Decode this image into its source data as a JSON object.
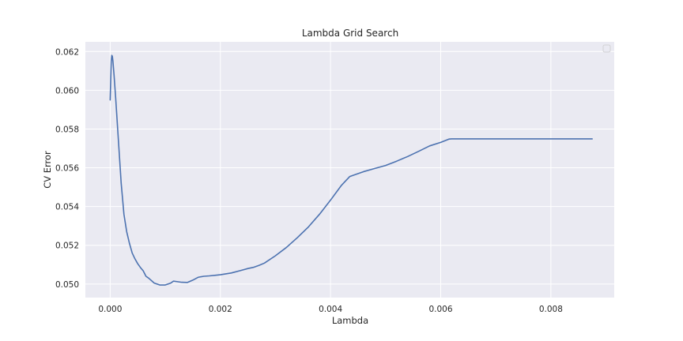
{
  "chart_data": {
    "type": "line",
    "title": "Lambda Grid Search",
    "xlabel": "Lambda",
    "ylabel": "CV Error",
    "xlim": [
      -0.00045,
      0.00915
    ],
    "ylim": [
      0.0493,
      0.0625
    ],
    "x_ticks": [
      0.0,
      0.002,
      0.004,
      0.006,
      0.008
    ],
    "x_tick_labels": [
      "0.000",
      "0.002",
      "0.004",
      "0.006",
      "0.008"
    ],
    "y_ticks": [
      0.05,
      0.052,
      0.054,
      0.056,
      0.058,
      0.06,
      0.062
    ],
    "y_tick_labels": [
      "0.050",
      "0.052",
      "0.054",
      "0.056",
      "0.058",
      "0.060",
      "0.062"
    ],
    "grid": true,
    "legend": "top-right (empty)",
    "colors": {
      "background": "#eaeaf2",
      "grid": "#ffffff",
      "line": "#4c72b0"
    },
    "series": [
      {
        "x": [
          0.0,
          2e-05,
          3e-05,
          4e-05,
          5e-05,
          7e-05,
          0.0001,
          0.00015,
          0.0002,
          0.00025,
          0.0003,
          0.00035,
          0.0004,
          0.00045,
          0.0005,
          0.00055,
          0.0006,
          0.00065,
          0.0007,
          0.0008,
          0.0009,
          0.001,
          0.0011,
          0.00115,
          0.0012,
          0.0013,
          0.0014,
          0.0015,
          0.0016,
          0.0017,
          0.0018,
          0.0019,
          0.002,
          0.0022,
          0.0024,
          0.0025,
          0.0026,
          0.0027,
          0.0028,
          0.003,
          0.0032,
          0.0034,
          0.0036,
          0.0038,
          0.004,
          0.0042,
          0.00435,
          0.0044,
          0.0046,
          0.0048,
          0.005,
          0.0052,
          0.0054,
          0.0056,
          0.0058,
          0.006,
          0.00615,
          0.0062,
          0.0065,
          0.007,
          0.0075,
          0.008,
          0.0085,
          0.00875
        ],
        "y": [
          0.0595,
          0.0615,
          0.0618,
          0.06175,
          0.0615,
          0.0608,
          0.0596,
          0.0574,
          0.0552,
          0.0536,
          0.0527,
          0.0521,
          0.0516,
          0.0513,
          0.05105,
          0.05085,
          0.05068,
          0.0504,
          0.0503,
          0.05005,
          0.04995,
          0.04995,
          0.05005,
          0.05015,
          0.05013,
          0.05009,
          0.05008,
          0.0502,
          0.05035,
          0.0504,
          0.05042,
          0.05045,
          0.05048,
          0.05057,
          0.05072,
          0.0508,
          0.05086,
          0.05096,
          0.05108,
          0.05146,
          0.05189,
          0.0524,
          0.05295,
          0.0536,
          0.05433,
          0.0551,
          0.05555,
          0.0556,
          0.0558,
          0.05596,
          0.05612,
          0.05634,
          0.05658,
          0.05685,
          0.05713,
          0.05731,
          0.05748,
          0.05749,
          0.05749,
          0.05749,
          0.05749,
          0.05749,
          0.05749,
          0.05749
        ]
      }
    ]
  }
}
